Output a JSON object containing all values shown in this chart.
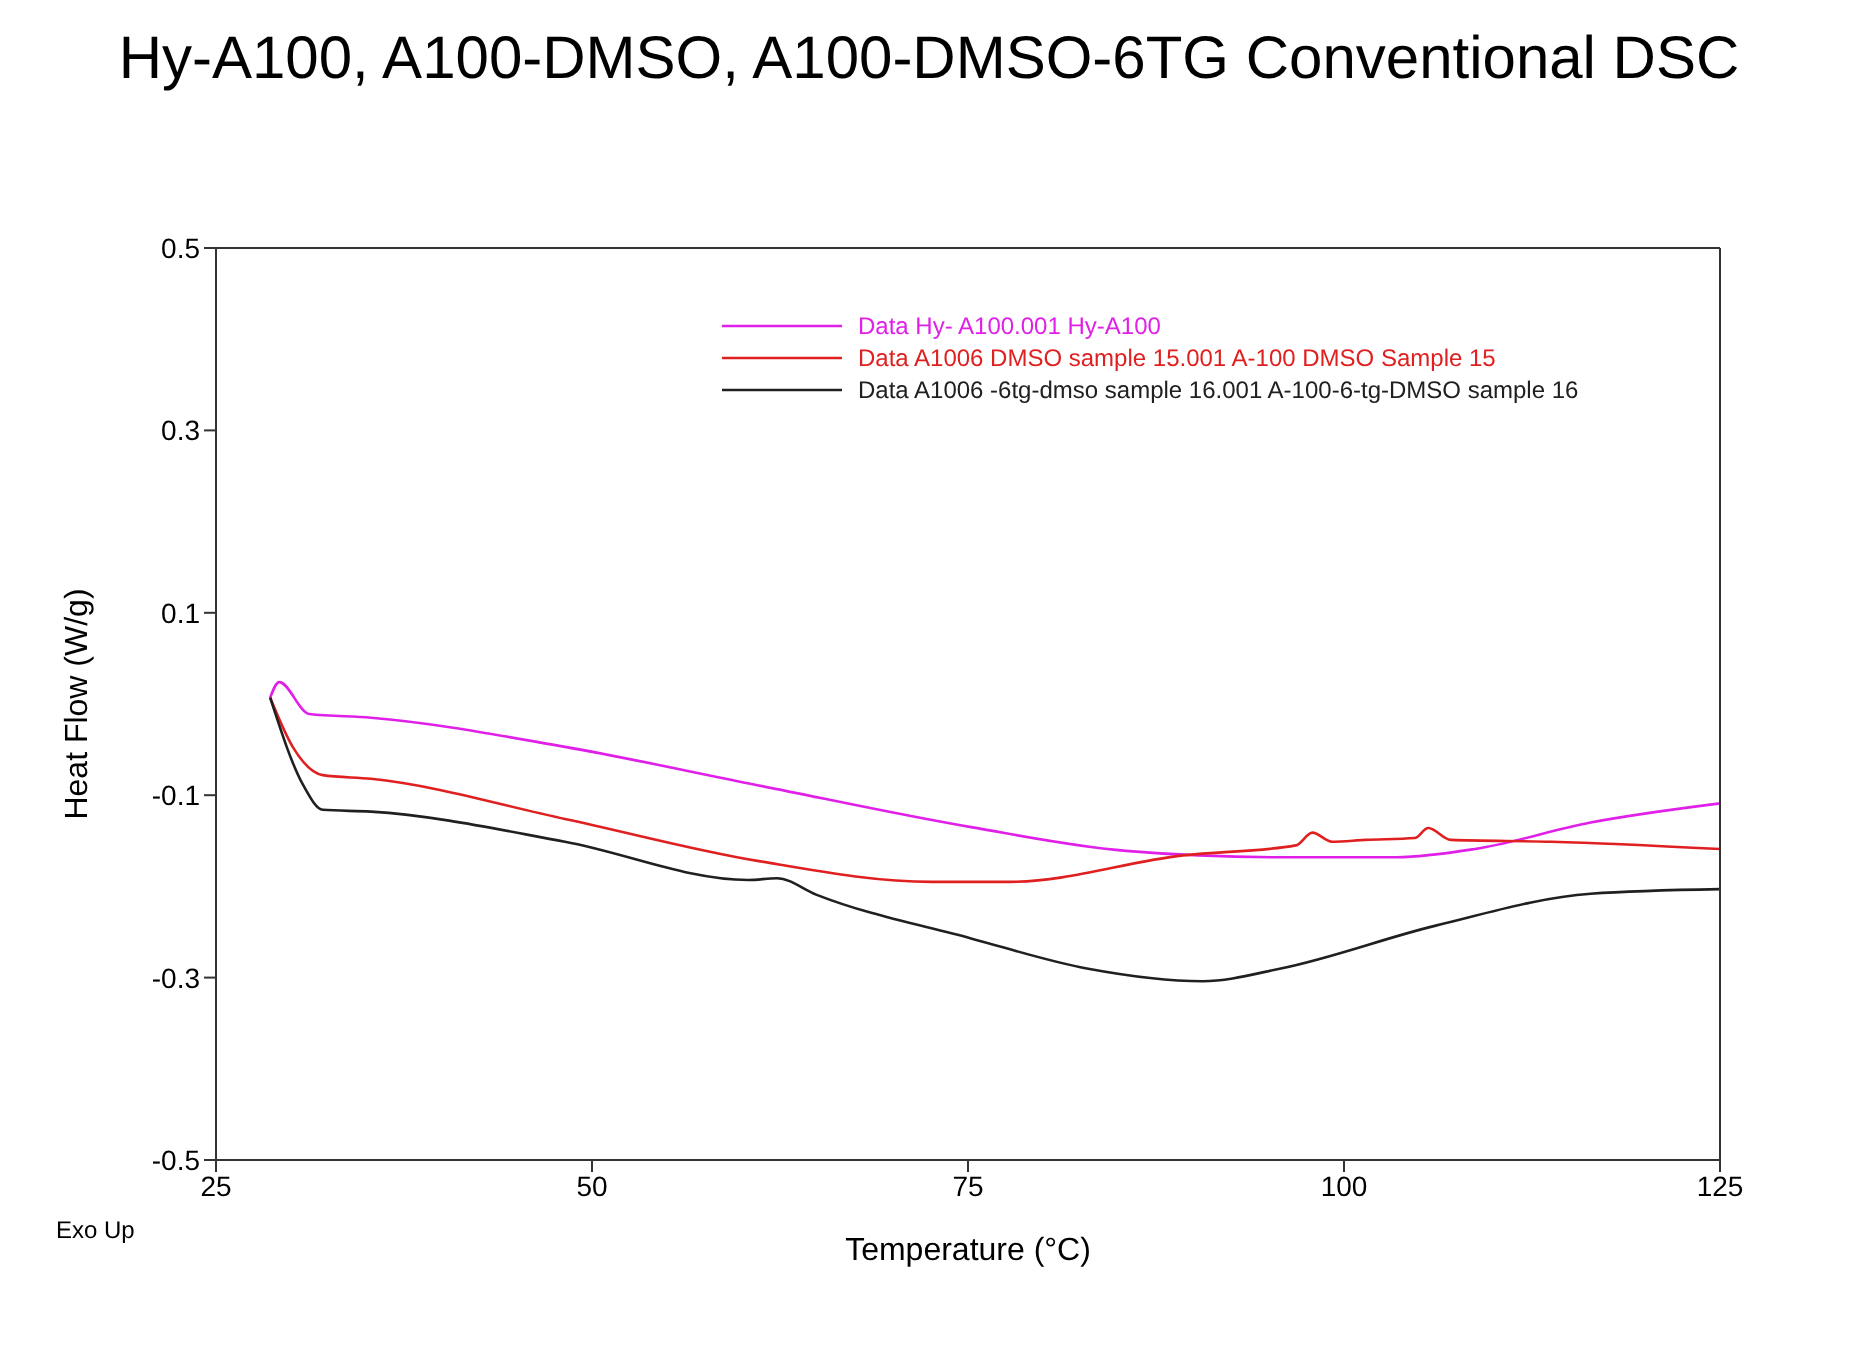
{
  "chart_data": {
    "type": "line",
    "title": "Hy-A100, A100-DMSO, A100-DMSO-6TG Conventional DSC",
    "xlabel": "Temperature (°C)",
    "ylabel": "Heat Flow (W/g)",
    "annotations": [
      "Exo Up"
    ],
    "xlim": [
      25,
      125
    ],
    "xticks": [
      25,
      50,
      75,
      100,
      125
    ],
    "ylim": [
      -0.5,
      0.5
    ],
    "yticks": [
      -0.5,
      -0.3,
      -0.1,
      0.1,
      0.3,
      0.5
    ],
    "grid": false,
    "legend": "top right",
    "marker": "none",
    "line_style": "solid",
    "series": [
      {
        "name": "Data Hy- A100.001  Hy-A100",
        "color": "#e020e8",
        "x": [
          28.6,
          29.2,
          31.2,
          35.3,
          48.2,
          61.0,
          75.2,
          85.5,
          95.8,
          103.5,
          108.7,
          116.4,
          125
        ],
        "values": [
          0.007,
          0.024,
          -0.011,
          -0.015,
          -0.047,
          -0.089,
          -0.135,
          -0.161,
          -0.168,
          -0.168,
          -0.159,
          -0.13,
          -0.109
        ]
      },
      {
        "name": "Data A1006 DMSO sample 15.001  A-100  DMSO Sample 15",
        "color": "#e02020",
        "x": [
          28.6,
          30.1,
          32.1,
          35.3,
          48.2,
          61.0,
          72.6,
          77.8,
          89.3,
          96.8,
          97.9,
          99.2,
          101.4,
          104.7,
          105.6,
          107.1,
          113.8,
          125
        ],
        "values": [
          0.007,
          -0.047,
          -0.078,
          -0.082,
          -0.126,
          -0.172,
          -0.195,
          -0.195,
          -0.166,
          -0.155,
          -0.141,
          -0.151,
          -0.149,
          -0.147,
          -0.136,
          -0.149,
          -0.151,
          -0.159
        ]
      },
      {
        "name": "Data A1006 -6tg-dmso sample 16.001  A-100-6-tg-DMSO sample 16",
        "color": "#202020",
        "x": [
          28.6,
          30.8,
          32.1,
          35.3,
          48.2,
          60.4,
          62.3,
          64.9,
          75.2,
          82.9,
          90.6,
          95.8,
          106.1,
          116.4,
          125
        ],
        "values": [
          0.007,
          -0.089,
          -0.116,
          -0.118,
          -0.151,
          -0.193,
          -0.191,
          -0.209,
          -0.257,
          -0.29,
          -0.304,
          -0.29,
          -0.243,
          -0.208,
          -0.203
        ]
      }
    ]
  }
}
